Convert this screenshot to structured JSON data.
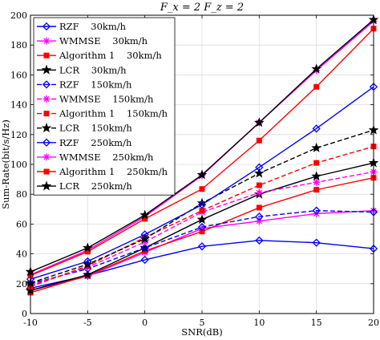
{
  "chart_data": {
    "type": "line",
    "title": "F_x = 2    F_z = 2",
    "xlabel": "SNR(dB)",
    "ylabel": "Sum-Rate(bit/s/Hz)",
    "xlim": [
      -10,
      20
    ],
    "ylim": [
      0,
      200
    ],
    "grid": true,
    "legend_position": "top-left",
    "x": [
      -10,
      -5,
      0,
      5,
      10,
      15,
      20
    ],
    "x_tick_labels": [
      "-10",
      "-5",
      "0",
      "5",
      "10",
      "15",
      "20"
    ],
    "y_tick_labels": [
      "0",
      "20",
      "40",
      "60",
      "80",
      "100",
      "120",
      "140",
      "160",
      "180",
      "200"
    ],
    "series": [
      {
        "name": "RZF    30km/h",
        "color": "#0000ff",
        "line": "solid",
        "marker": "diamond",
        "values": [
          17,
          25.5,
          36,
          45,
          49,
          47.5,
          43.5
        ]
      },
      {
        "name": "WMMSE    30km/h",
        "color": "#ff00ff",
        "line": "solid",
        "marker": "asterisk",
        "values": [
          15.5,
          25,
          41,
          57,
          62,
          67,
          69
        ]
      },
      {
        "name": "Algorithm 1    30km/h",
        "color": "#ff0000",
        "line": "solid",
        "marker": "square",
        "values": [
          14,
          25.5,
          42,
          55,
          71,
          83,
          91
        ]
      },
      {
        "name": "LCR    30km/h",
        "color": "#000000",
        "line": "solid",
        "marker": "star",
        "values": [
          15.5,
          26,
          44,
          63,
          80,
          92,
          101
        ]
      },
      {
        "name": "RZF    150km/h",
        "color": "#0000ff",
        "line": "dashed",
        "marker": "diamond",
        "values": [
          20,
          30,
          44,
          58,
          65,
          69,
          68
        ]
      },
      {
        "name": "WMMSE    150km/h",
        "color": "#ff00ff",
        "line": "dashed",
        "marker": "asterisk",
        "values": [
          19,
          31,
          48,
          68,
          81,
          88,
          95
        ]
      },
      {
        "name": "Algorithm 1    150km/h",
        "color": "#ff0000",
        "line": "dashed",
        "marker": "square",
        "values": [
          18,
          32,
          51,
          69,
          86,
          101,
          112
        ]
      },
      {
        "name": "LCR    150km/h",
        "color": "#000000",
        "line": "dashed",
        "marker": "star",
        "values": [
          20.5,
          33,
          50,
          74,
          94,
          111,
          123
        ]
      },
      {
        "name": "RZF    250km/h",
        "color": "#0000ff",
        "line": "solid",
        "marker": "diamond",
        "values": [
          23,
          35,
          53,
          73,
          98,
          124,
          152
        ]
      },
      {
        "name": "WMMSE    250km/h",
        "color": "#ff00ff",
        "line": "solid",
        "marker": "asterisk",
        "values": [
          26,
          42.5,
          65,
          92.5,
          128,
          163,
          196
        ]
      },
      {
        "name": "Algorithm 1    250km/h",
        "color": "#ff0000",
        "line": "solid",
        "marker": "square",
        "values": [
          25.5,
          41.5,
          63.5,
          83.5,
          116,
          152,
          191
        ]
      },
      {
        "name": "LCR    250km/h",
        "color": "#000000",
        "line": "solid",
        "marker": "star",
        "values": [
          28,
          44,
          66,
          93,
          128,
          164,
          197
        ]
      }
    ]
  }
}
